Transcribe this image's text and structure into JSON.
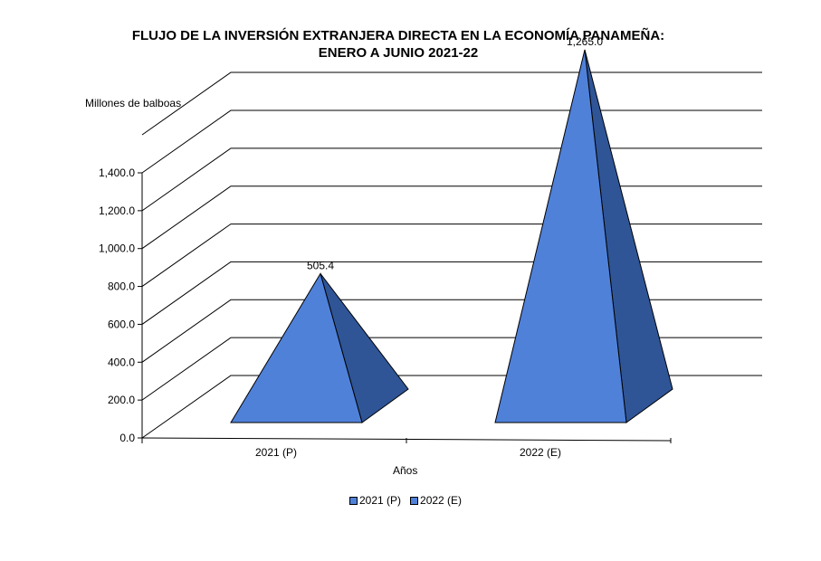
{
  "chart_data": {
    "type": "bar",
    "shape": "pyramid-3d",
    "title_lines": [
      "FLUJO DE LA INVERSIÓN EXTRANJERA DIRECTA EN LA ECONOMÍA PANAMEÑA:",
      "ENERO A JUNIO 2021-22"
    ],
    "ylabel": "Millones de balboas",
    "xlabel": "Años",
    "categories": [
      "2021 (P)",
      "2022 (E)"
    ],
    "values": [
      505.4,
      1265.0
    ],
    "data_labels": [
      "505.4",
      "1,265.0"
    ],
    "yticks": [
      "0.0",
      "200.0",
      "400.0",
      "600.0",
      "800.0",
      "1,000.0",
      "1,200.0",
      "1,400.0"
    ],
    "ylim": [
      0,
      1400
    ],
    "grid": true,
    "legend_position": "bottom",
    "series": [
      {
        "name": "2021 (P)",
        "color": "#4f81d9",
        "side_color": "#2f5597"
      },
      {
        "name": "2022 (E)",
        "color": "#4f81d9",
        "side_color": "#2f5597"
      }
    ]
  }
}
